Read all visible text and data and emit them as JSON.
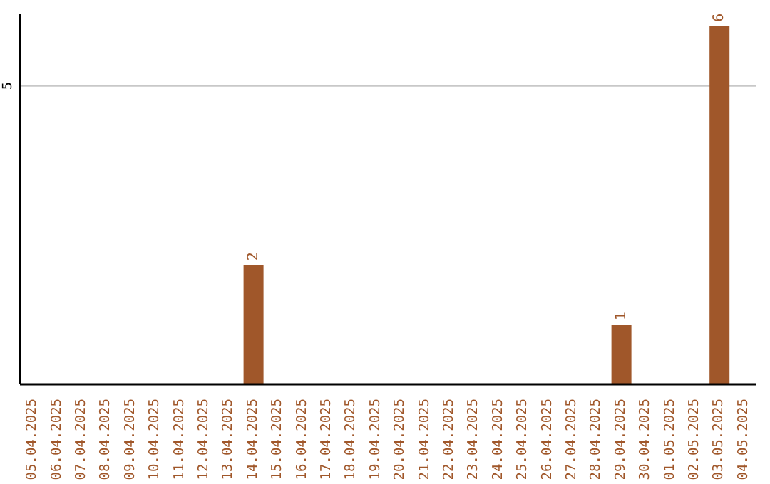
{
  "chart_data": {
    "type": "bar",
    "categories": [
      "05.04.2025",
      "06.04.2025",
      "07.04.2025",
      "08.04.2025",
      "09.04.2025",
      "10.04.2025",
      "11.04.2025",
      "12.04.2025",
      "13.04.2025",
      "14.04.2025",
      "15.04.2025",
      "16.04.2025",
      "17.04.2025",
      "18.04.2025",
      "19.04.2025",
      "20.04.2025",
      "21.04.2025",
      "22.04.2025",
      "23.04.2025",
      "24.04.2025",
      "25.04.2025",
      "26.04.2025",
      "27.04.2025",
      "28.04.2025",
      "29.04.2025",
      "30.04.2025",
      "01.05.2025",
      "02.05.2025",
      "03.05.2025",
      "04.05.2025"
    ],
    "values": [
      0,
      0,
      0,
      0,
      0,
      0,
      0,
      0,
      0,
      2,
      0,
      0,
      0,
      0,
      0,
      0,
      0,
      0,
      0,
      0,
      0,
      0,
      0,
      0,
      1,
      0,
      0,
      0,
      6,
      0
    ],
    "value_labels": [
      null,
      null,
      null,
      null,
      null,
      null,
      null,
      null,
      null,
      "2",
      null,
      null,
      null,
      null,
      null,
      null,
      null,
      null,
      null,
      null,
      null,
      null,
      null,
      null,
      "1",
      null,
      null,
      null,
      "6",
      null
    ],
    "color": "#a0572a",
    "ylim": [
      0,
      6.2
    ],
    "yticks": [
      5
    ],
    "grid": "y"
  }
}
